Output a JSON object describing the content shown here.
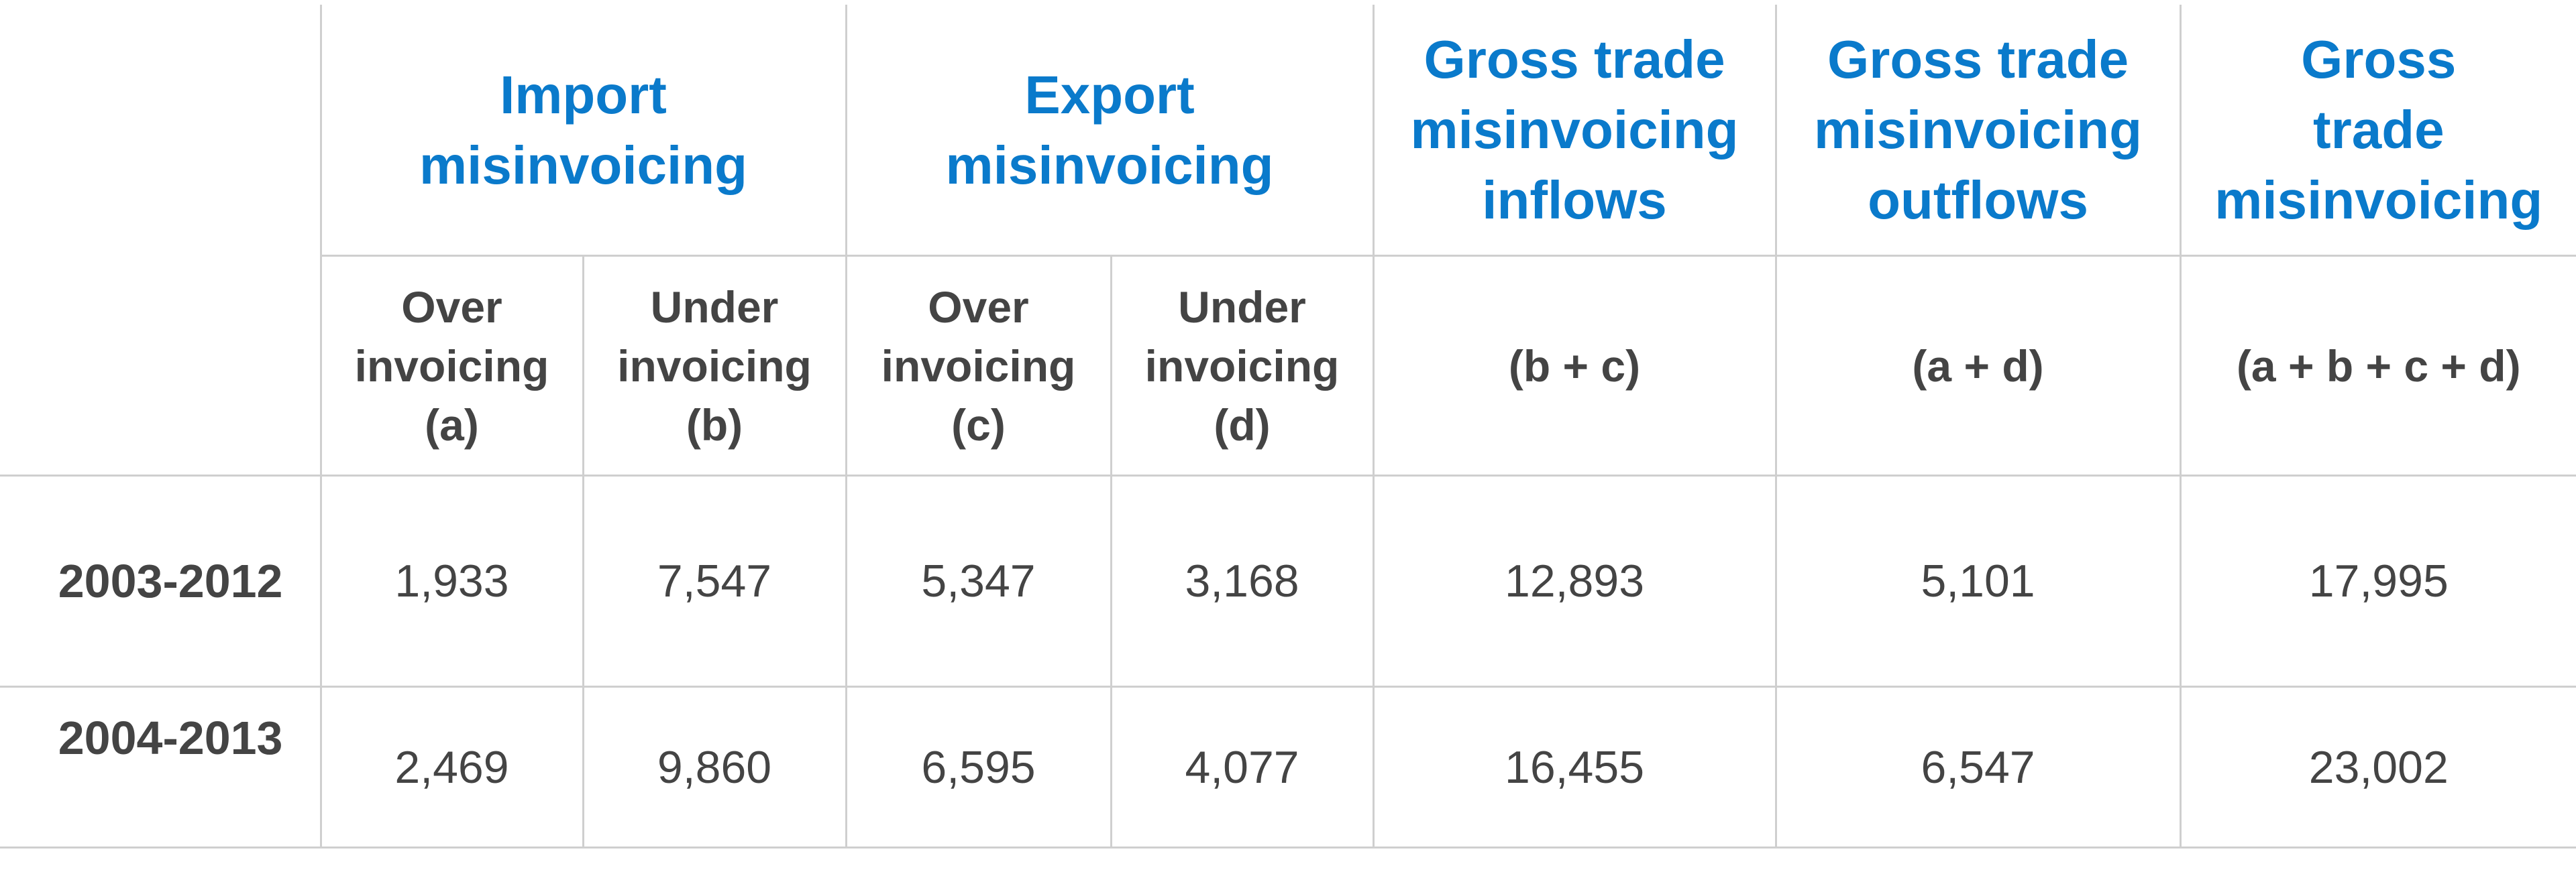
{
  "table": {
    "groups": [
      {
        "lines": [
          "Import",
          "misinvoicing"
        ]
      },
      {
        "lines": [
          "Export",
          "misinvoicing"
        ]
      },
      {
        "lines": [
          "Gross trade",
          "misinvoicing",
          "inflows"
        ]
      },
      {
        "lines": [
          "Gross trade",
          "misinvoicing",
          "outflows"
        ]
      },
      {
        "lines": [
          "Gross",
          "trade",
          "misinvoicing"
        ]
      }
    ],
    "subheaders": [
      {
        "lines": [
          "Over",
          "invoicing",
          "(a)"
        ]
      },
      {
        "lines": [
          "Under",
          "invoicing",
          "(b)"
        ]
      },
      {
        "lines": [
          "Over",
          "invoicing",
          "(c)"
        ]
      },
      {
        "lines": [
          "Under",
          "invoicing",
          "(d)"
        ]
      },
      {
        "lines": [
          "(b + c)"
        ]
      },
      {
        "lines": [
          "(a + d)"
        ]
      },
      {
        "lines": [
          "(a + b + c + d)"
        ]
      }
    ],
    "rows": [
      {
        "label": "2003-2012",
        "values": [
          "1,933",
          "7,547",
          "5,347",
          "3,168",
          "12,893",
          "5,101",
          "17,995"
        ]
      },
      {
        "label": "2004-2013",
        "values": [
          "2,469",
          "9,860",
          "6,595",
          "4,077",
          "16,455",
          "6,547",
          "23,002"
        ]
      }
    ]
  }
}
